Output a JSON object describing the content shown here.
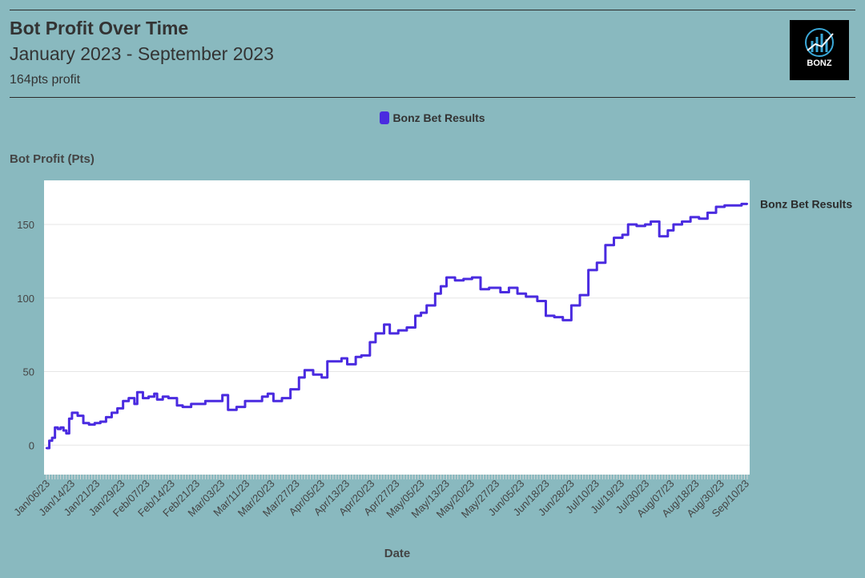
{
  "header": {
    "title": "Bot Profit Over Time",
    "subtitle": "January 2023 - September 2023",
    "note": "164pts profit",
    "logo_text": "BONZ"
  },
  "colors": {
    "background": "#89b9bf",
    "plot_background": "#ffffff",
    "series": "#4a2be0",
    "grid": "#e6e6e6",
    "logo_background": "#000000",
    "logo_accent": "#3aa8d8"
  },
  "chart_data": {
    "type": "line",
    "ylabel": "Bot Profit (Pts)",
    "xlabel": "Date",
    "ylim": [
      -20,
      180
    ],
    "yticks": [
      0,
      50,
      100,
      150
    ],
    "x_range": [
      "2023-01-06",
      "2023-09-10"
    ],
    "grid": true,
    "legend_position": "top-center",
    "step": true,
    "xtick_labels": [
      "Jan/06/23",
      "Jan/14/23",
      "Jan/21/23",
      "Jan/29/23",
      "Feb/07/23",
      "Feb/14/23",
      "Feb/21/23",
      "Mar/03/23",
      "Mar/11/23",
      "Mar/20/23",
      "Mar/27/23",
      "Apr/05/23",
      "Apr/13/23",
      "Apr/20/23",
      "Apr/27/23",
      "May/05/23",
      "May/13/23",
      "May/20/23",
      "May/27/23",
      "Jun/05/23",
      "Jun/18/23",
      "Jun/28/23",
      "Jul/10/23",
      "Jul/19/23",
      "Jul/30/23",
      "Aug/07/23",
      "Aug/18/23",
      "Aug/30/23",
      "Sep/10/23"
    ],
    "series": [
      {
        "name": "Bonz Bet Results",
        "x": [
          "2023-01-06",
          "2023-01-07",
          "2023-01-08",
          "2023-01-09",
          "2023-01-10",
          "2023-01-11",
          "2023-01-12",
          "2023-01-13",
          "2023-01-14",
          "2023-01-15",
          "2023-01-17",
          "2023-01-19",
          "2023-01-21",
          "2023-01-23",
          "2023-01-25",
          "2023-01-27",
          "2023-01-29",
          "2023-01-31",
          "2023-02-02",
          "2023-02-04",
          "2023-02-06",
          "2023-02-07",
          "2023-02-09",
          "2023-02-11",
          "2023-02-13",
          "2023-02-14",
          "2023-02-16",
          "2023-02-18",
          "2023-02-21",
          "2023-02-23",
          "2023-02-26",
          "2023-03-01",
          "2023-03-03",
          "2023-03-06",
          "2023-03-09",
          "2023-03-11",
          "2023-03-14",
          "2023-03-17",
          "2023-03-20",
          "2023-03-23",
          "2023-03-25",
          "2023-03-27",
          "2023-03-30",
          "2023-04-02",
          "2023-04-05",
          "2023-04-07",
          "2023-04-10",
          "2023-04-13",
          "2023-04-15",
          "2023-04-17",
          "2023-04-20",
          "2023-04-22",
          "2023-04-25",
          "2023-04-27",
          "2023-04-30",
          "2023-05-02",
          "2023-05-05",
          "2023-05-07",
          "2023-05-10",
          "2023-05-13",
          "2023-05-16",
          "2023-05-18",
          "2023-05-20",
          "2023-05-23",
          "2023-05-25",
          "2023-05-27",
          "2023-05-30",
          "2023-06-02",
          "2023-06-05",
          "2023-06-08",
          "2023-06-11",
          "2023-06-15",
          "2023-06-18",
          "2023-06-21",
          "2023-06-24",
          "2023-06-28",
          "2023-07-01",
          "2023-07-04",
          "2023-07-07",
          "2023-07-10",
          "2023-07-13",
          "2023-07-16",
          "2023-07-19",
          "2023-07-22",
          "2023-07-25",
          "2023-07-28",
          "2023-07-30",
          "2023-08-02",
          "2023-08-05",
          "2023-08-07",
          "2023-08-10",
          "2023-08-13",
          "2023-08-15",
          "2023-08-18",
          "2023-08-21",
          "2023-08-24",
          "2023-08-27",
          "2023-08-30",
          "2023-09-02",
          "2023-09-05",
          "2023-09-08",
          "2023-09-10"
        ],
        "values": [
          -2,
          3,
          5,
          12,
          11,
          12,
          10,
          8,
          18,
          22,
          20,
          15,
          14,
          15,
          16,
          19,
          22,
          25,
          30,
          32,
          28,
          36,
          32,
          33,
          35,
          31,
          33,
          32,
          27,
          26,
          28,
          28,
          30,
          30,
          34,
          24,
          26,
          30,
          30,
          33,
          35,
          30,
          32,
          38,
          46,
          51,
          48,
          46,
          57,
          57,
          59,
          55,
          60,
          61,
          70,
          76,
          82,
          76,
          78,
          80,
          88,
          90,
          95,
          103,
          108,
          114,
          112,
          113,
          114,
          106,
          107,
          104,
          107,
          103,
          101,
          98,
          88,
          87,
          85,
          95,
          102,
          119,
          124,
          136,
          141,
          143,
          150,
          149,
          150,
          152,
          142,
          146,
          150,
          152,
          155,
          154,
          158,
          162,
          163,
          163,
          164,
          164
        ]
      }
    ]
  }
}
